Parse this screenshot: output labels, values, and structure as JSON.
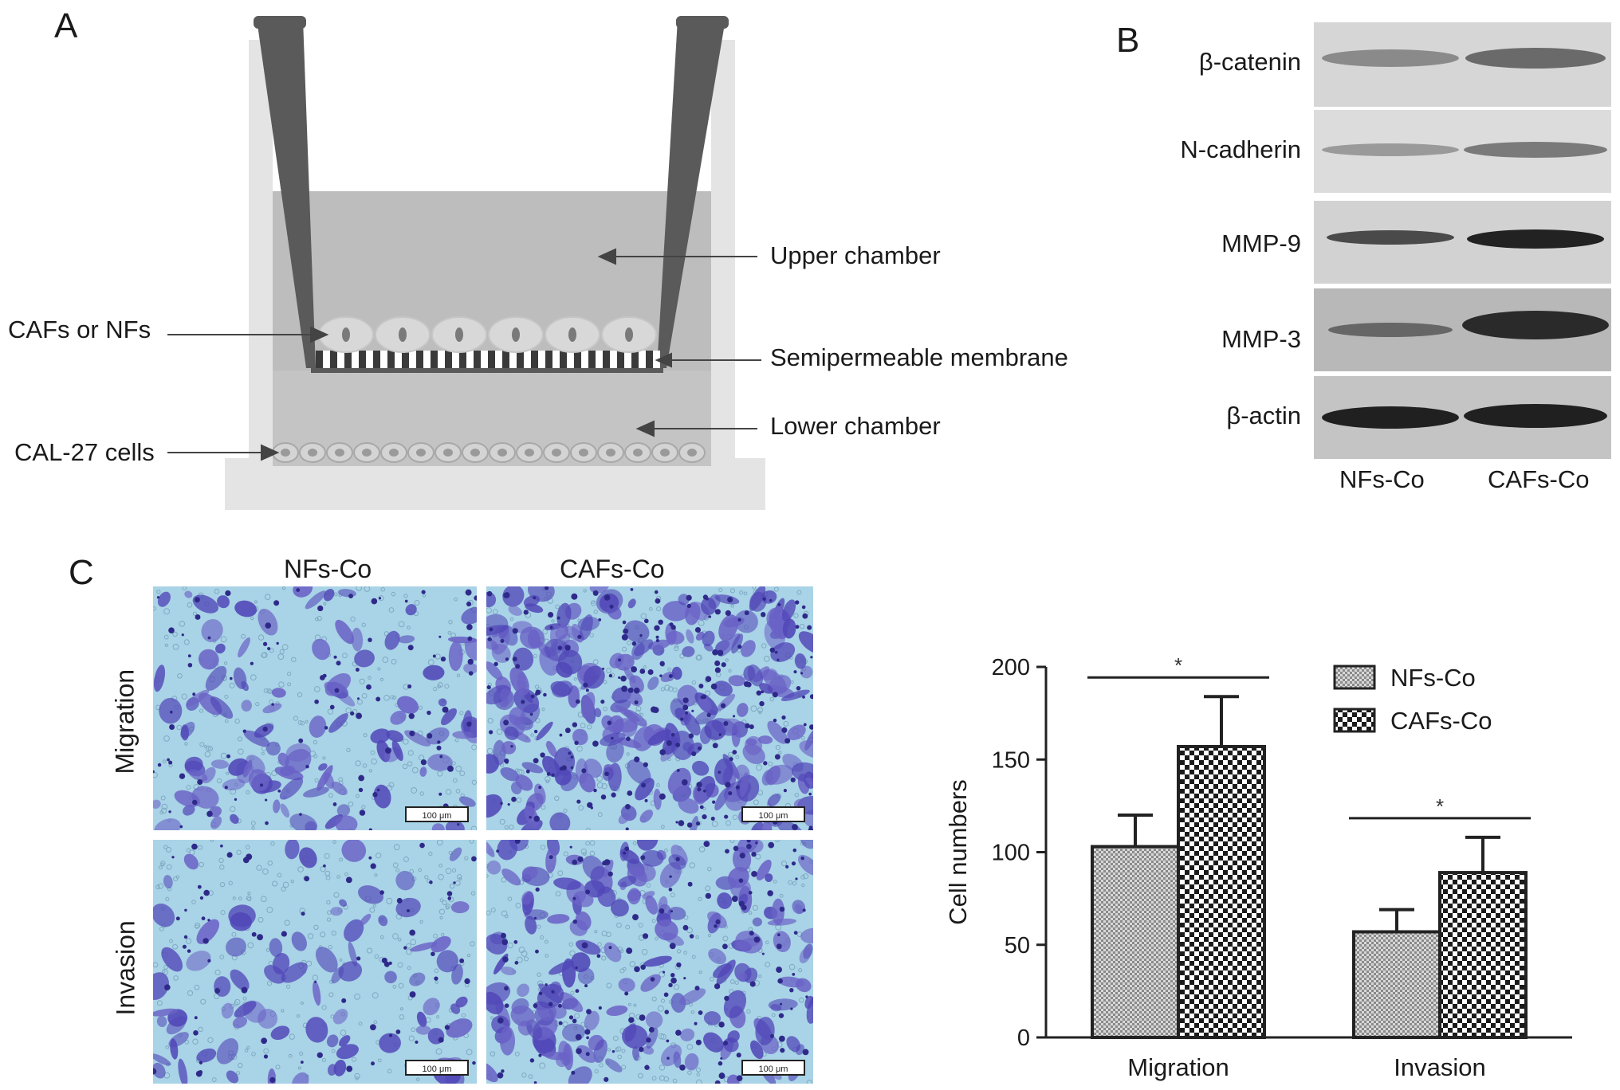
{
  "panels": {
    "a": {
      "letter": "A",
      "labels": {
        "upper_chamber": "Upper chamber",
        "cafs_or_nfs": "CAFs or NFs",
        "membrane": "Semipermeable membrane",
        "lower_chamber": "Lower chamber",
        "cal27": "CAL-27 cells"
      }
    },
    "b": {
      "letter": "B",
      "bands": [
        "β-catenin",
        "N-cadherin",
        "MMP-9",
        "MMP-3",
        "β-actin"
      ],
      "lanes": [
        "NFs-Co",
        "CAFs-Co"
      ]
    },
    "c": {
      "letter": "C",
      "columns": [
        "NFs-Co",
        "CAFs-Co"
      ],
      "rows": [
        "Migration",
        "Invasion"
      ],
      "scale_bar": "100 μm"
    }
  },
  "chart_data": {
    "type": "bar",
    "categories": [
      "Migration",
      "Invasion"
    ],
    "series": [
      {
        "name": "NFs-Co",
        "values": [
          103,
          57
        ],
        "errors": [
          17,
          12
        ],
        "pattern": "fine-crosshatch"
      },
      {
        "name": "CAFs-Co",
        "values": [
          157,
          89
        ],
        "errors": [
          27,
          19
        ],
        "pattern": "checkerboard"
      }
    ],
    "xlabel": "",
    "ylabel": "Cell numbers",
    "ylim": [
      0,
      200
    ],
    "yticks": [
      "0",
      "50",
      "100",
      "150",
      "200"
    ],
    "significance": [
      "*",
      "*"
    ],
    "legend_position": "top-right"
  }
}
